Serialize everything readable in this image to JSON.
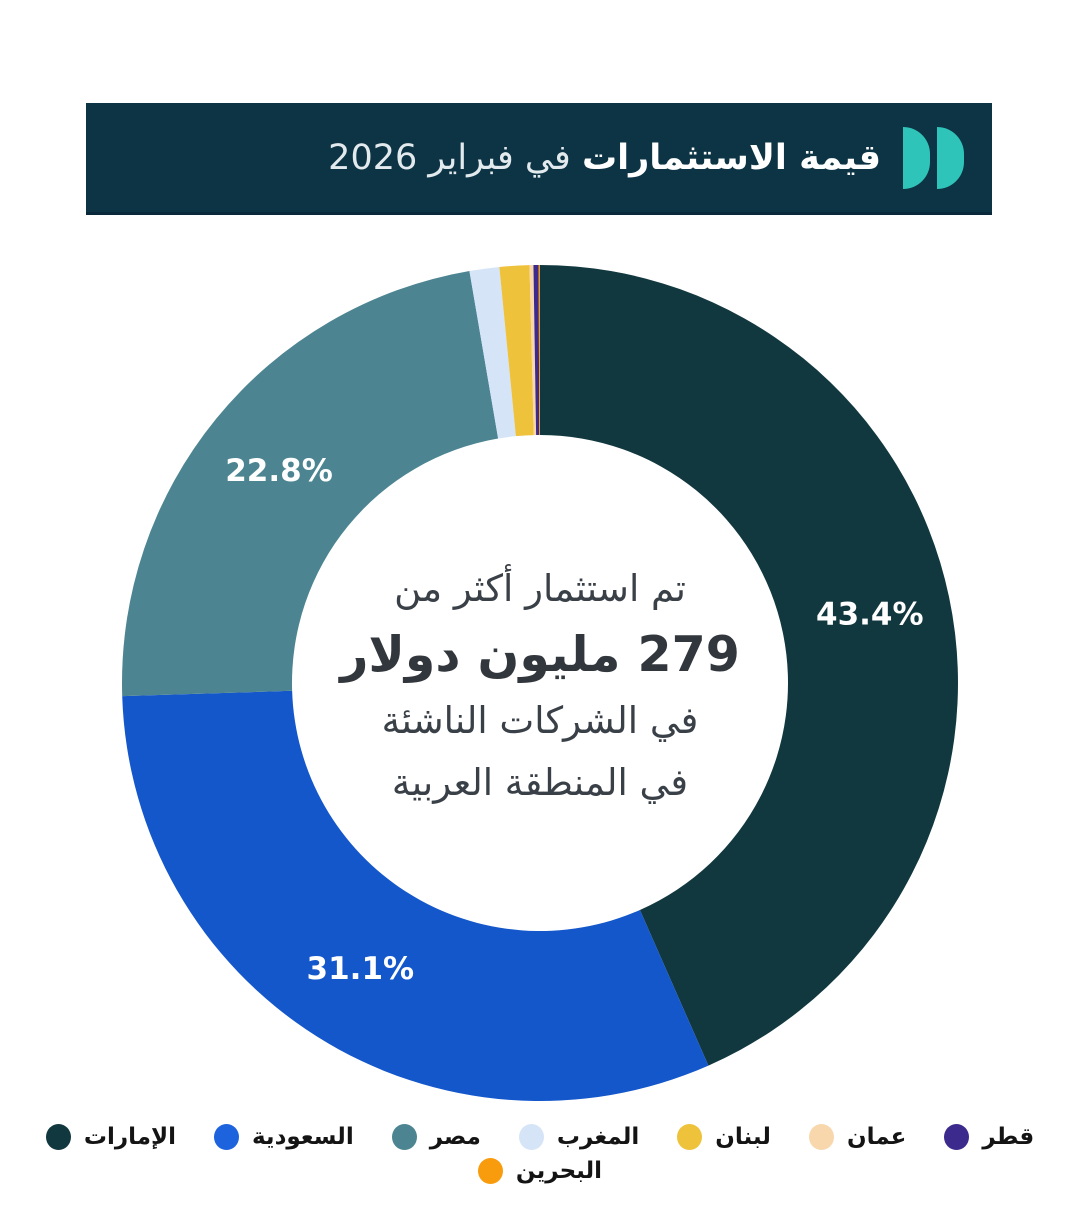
{
  "header": {
    "title_bold": "قيمة الاستثمارات",
    "title_rest": "في فبراير 2026",
    "bg_color": "#0d3444",
    "logo_color": "#2fc4b9",
    "logo_icon": "double-d-logo"
  },
  "center": {
    "line1": "تم استثمار أكثر من",
    "line2": "279 مليون دولار",
    "line3": "في الشركات الناشئة",
    "line4": "في المنطقة العربية"
  },
  "chart_data": {
    "type": "pie",
    "subtype": "donut",
    "title": "قيمة الاستثمارات في فبراير 2026",
    "units": "percent",
    "start_angle_deg": 0,
    "direction": "clockwise",
    "legend_position": "bottom",
    "center_text": "تم استثمار أكثر من 279 مليون دولار في الشركات الناشئة في المنطقة العربية",
    "slices": [
      {
        "label": "الإمارات",
        "value_pct": 43.4,
        "pct_label": "43.4%",
        "color": "#12383f"
      },
      {
        "label": "السعودية",
        "value_pct": 31.1,
        "pct_label": "31.1%",
        "color": "#1457cb"
      },
      {
        "label": "مصر",
        "value_pct": 22.8,
        "pct_label": "22.8%",
        "color": "#4c8591"
      },
      {
        "label": "المغرب",
        "value_pct": 1.15,
        "pct_label": "",
        "color": "#d6e4f8"
      },
      {
        "label": "لبنان",
        "value_pct": 1.15,
        "pct_label": "",
        "color": "#efc23b"
      },
      {
        "label": "عمان",
        "value_pct": 0.15,
        "pct_label": "",
        "color": "#f8d7ad"
      },
      {
        "label": "قطر",
        "value_pct": 0.2,
        "pct_label": "",
        "color": "#3c2b8d"
      },
      {
        "label": "البحرين",
        "value_pct": 0.05,
        "pct_label": "",
        "color": "#f89c0d"
      }
    ]
  },
  "legend": {
    "row1_count": 7,
    "items": [
      {
        "label": "الإمارات",
        "color": "#12383f"
      },
      {
        "label": "السعودية",
        "color": "#1d63dd"
      },
      {
        "label": "مصر",
        "color": "#4c8591"
      },
      {
        "label": "المغرب",
        "color": "#d6e4f8"
      },
      {
        "label": "لبنان",
        "color": "#efc23b"
      },
      {
        "label": "عمان",
        "color": "#f8d7ad"
      },
      {
        "label": "قطر",
        "color": "#3c2b8d"
      },
      {
        "label": "البحرين",
        "color": "#f89c0d"
      }
    ]
  }
}
